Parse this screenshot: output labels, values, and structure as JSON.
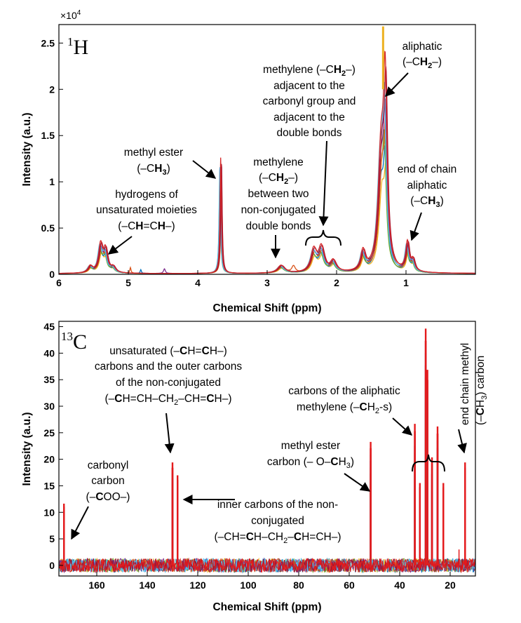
{
  "chart_data": [
    {
      "type": "line",
      "panel": "1H",
      "nucleus": {
        "mass": "1",
        "symbol": "H"
      },
      "xlabel": "Chemical Shift (ppm)",
      "ylabel": "Intensity (a.u.)",
      "xlim": [
        6,
        0
      ],
      "ylim": [
        0,
        2.7
      ],
      "y_multiplier_base": "×10",
      "y_multiplier_exp": "4",
      "xticks": [
        6,
        5,
        4,
        3,
        2,
        1
      ],
      "xtick_labels": [
        "6",
        "5",
        "4",
        "3",
        "2",
        "1"
      ],
      "yticks": [
        0,
        0.5,
        1,
        1.5,
        2,
        2.5
      ],
      "ytick_labels": [
        "0",
        "0.5",
        "1",
        "1.5",
        "2",
        "2.5"
      ],
      "series_colors": [
        "#edb120",
        "#0072bd",
        "#77ac30",
        "#d95319",
        "#7e2f8e",
        "#4dbeee",
        "#a2142f",
        "#d62728"
      ],
      "peaks": [
        {
          "x": 5.35,
          "y": 0.3
        },
        {
          "x": 3.67,
          "y": 1.28
        },
        {
          "x": 2.8,
          "y": 0.08
        },
        {
          "x": 2.25,
          "y": 0.33
        },
        {
          "x": 1.33,
          "y": 2.62
        },
        {
          "x": 0.97,
          "y": 0.35
        }
      ],
      "annotations": [
        {
          "lines": [
            "hydrogens of",
            "unsaturated moieties",
            "(–CH=CH–)"
          ]
        },
        {
          "lines": [
            "methyl ester",
            "(–CH3)"
          ]
        },
        {
          "lines": [
            "methylene",
            "(–CH2–)",
            "between two",
            "non-conjugated",
            "double bonds"
          ]
        },
        {
          "lines": [
            "methylene (–CH2–)",
            "adjacent to the",
            "carbonyl group and",
            "adjacent to the",
            "double bonds"
          ]
        },
        {
          "lines": [
            "aliphatic",
            "(–CH2–)"
          ]
        },
        {
          "lines": [
            "end of chain",
            "aliphatic",
            "(–CH3)"
          ]
        }
      ]
    },
    {
      "type": "line",
      "panel": "13C",
      "nucleus": {
        "mass": "13",
        "symbol": "C"
      },
      "xlabel": "Chemical Shift (ppm)",
      "ylabel": "Intensity (a.u.)",
      "xlim": [
        175,
        10
      ],
      "ylim": [
        -2,
        46
      ],
      "xticks": [
        160,
        140,
        120,
        100,
        80,
        60,
        40,
        20
      ],
      "xtick_labels": [
        "160",
        "140",
        "120",
        "100",
        "80",
        "60",
        "40",
        "20"
      ],
      "yticks": [
        0,
        5,
        10,
        15,
        20,
        25,
        30,
        35,
        40,
        45
      ],
      "ytick_labels": [
        "0",
        "5",
        "10",
        "15",
        "20",
        "25",
        "30",
        "35",
        "40",
        "45"
      ],
      "series_colors": [
        "#edb120",
        "#0072bd",
        "#77ac30",
        "#d95319",
        "#7e2f8e",
        "#4dbeee",
        "#a2142f",
        "#e41a1c"
      ],
      "peaks": [
        {
          "x": 173.0,
          "y": 12
        },
        {
          "x": 130.0,
          "y": 20
        },
        {
          "x": 128.0,
          "y": 17.5
        },
        {
          "x": 51.5,
          "y": 24
        },
        {
          "x": 34.0,
          "y": 27.5
        },
        {
          "x": 32.0,
          "y": 16
        },
        {
          "x": 29.7,
          "y": 46
        },
        {
          "x": 29.0,
          "y": 38
        },
        {
          "x": 27.2,
          "y": 21
        },
        {
          "x": 25.0,
          "y": 27
        },
        {
          "x": 22.7,
          "y": 16
        },
        {
          "x": 14.1,
          "y": 20
        }
      ],
      "annotations": [
        {
          "lines": [
            "unsaturated (–CH=CH–)",
            "carbons and the outer carbons",
            "of the non-conjugated",
            "(–CH=CH–CH2–CH=CH–)"
          ]
        },
        {
          "lines": [
            "carbonyl",
            "carbon",
            "(–COO–)"
          ]
        },
        {
          "lines": [
            "inner carbons of the non-",
            "conjugated",
            "(–CH=CH–CH2–CH=CH–)"
          ]
        },
        {
          "lines": [
            "methyl ester",
            "carbon (– O–CH3)"
          ]
        },
        {
          "lines": [
            "carbons of the aliphatic",
            "methylene (–CH2-s)"
          ]
        },
        {
          "lines": [
            "end chain methyl",
            "(–CH3) carbon"
          ]
        }
      ]
    }
  ]
}
